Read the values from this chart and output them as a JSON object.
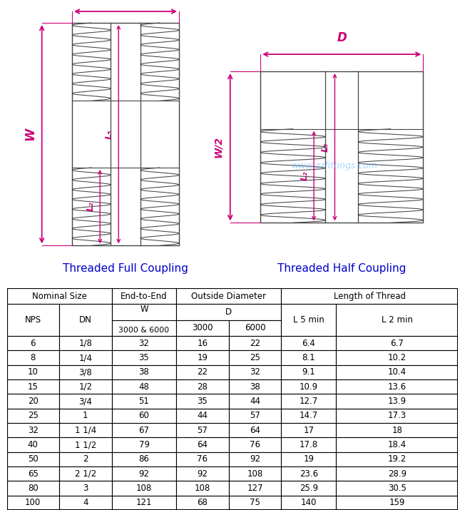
{
  "title_full": "Threaded Full Coupling",
  "title_half": "Threaded Half Coupling",
  "title_color": "#0000cc",
  "dimension_color": "#cc0077",
  "line_color": "#444444",
  "background_color": "#ffffff",
  "watermark_color": "#55aaff",
  "rows": [
    [
      "6",
      "1/8",
      "32",
      "16",
      "22",
      "6.4",
      "6.7"
    ],
    [
      "8",
      "1/4",
      "35",
      "19",
      "25",
      "8.1",
      "10.2"
    ],
    [
      "10",
      "3/8",
      "38",
      "22",
      "32",
      "9.1",
      "10.4"
    ],
    [
      "15",
      "1/2",
      "48",
      "28",
      "38",
      "10.9",
      "13.6"
    ],
    [
      "20",
      "3/4",
      "51",
      "35",
      "44",
      "12.7",
      "13.9"
    ],
    [
      "25",
      "1",
      "60",
      "44",
      "57",
      "14.7",
      "17.3"
    ],
    [
      "32",
      "1 1/4",
      "67",
      "57",
      "64",
      "17",
      "18"
    ],
    [
      "40",
      "1 1/2",
      "79",
      "64",
      "76",
      "17.8",
      "18.4"
    ],
    [
      "50",
      "2",
      "86",
      "76",
      "92",
      "19",
      "19.2"
    ],
    [
      "65",
      "2 1/2",
      "92",
      "92",
      "108",
      "23.6",
      "28.9"
    ],
    [
      "80",
      "3",
      "108",
      "108",
      "127",
      "25.9",
      "30.5"
    ],
    [
      "100",
      "4",
      "121",
      "68",
      "75",
      "140",
      "159"
    ]
  ],
  "fig_width": 6.52,
  "fig_height": 7.15
}
